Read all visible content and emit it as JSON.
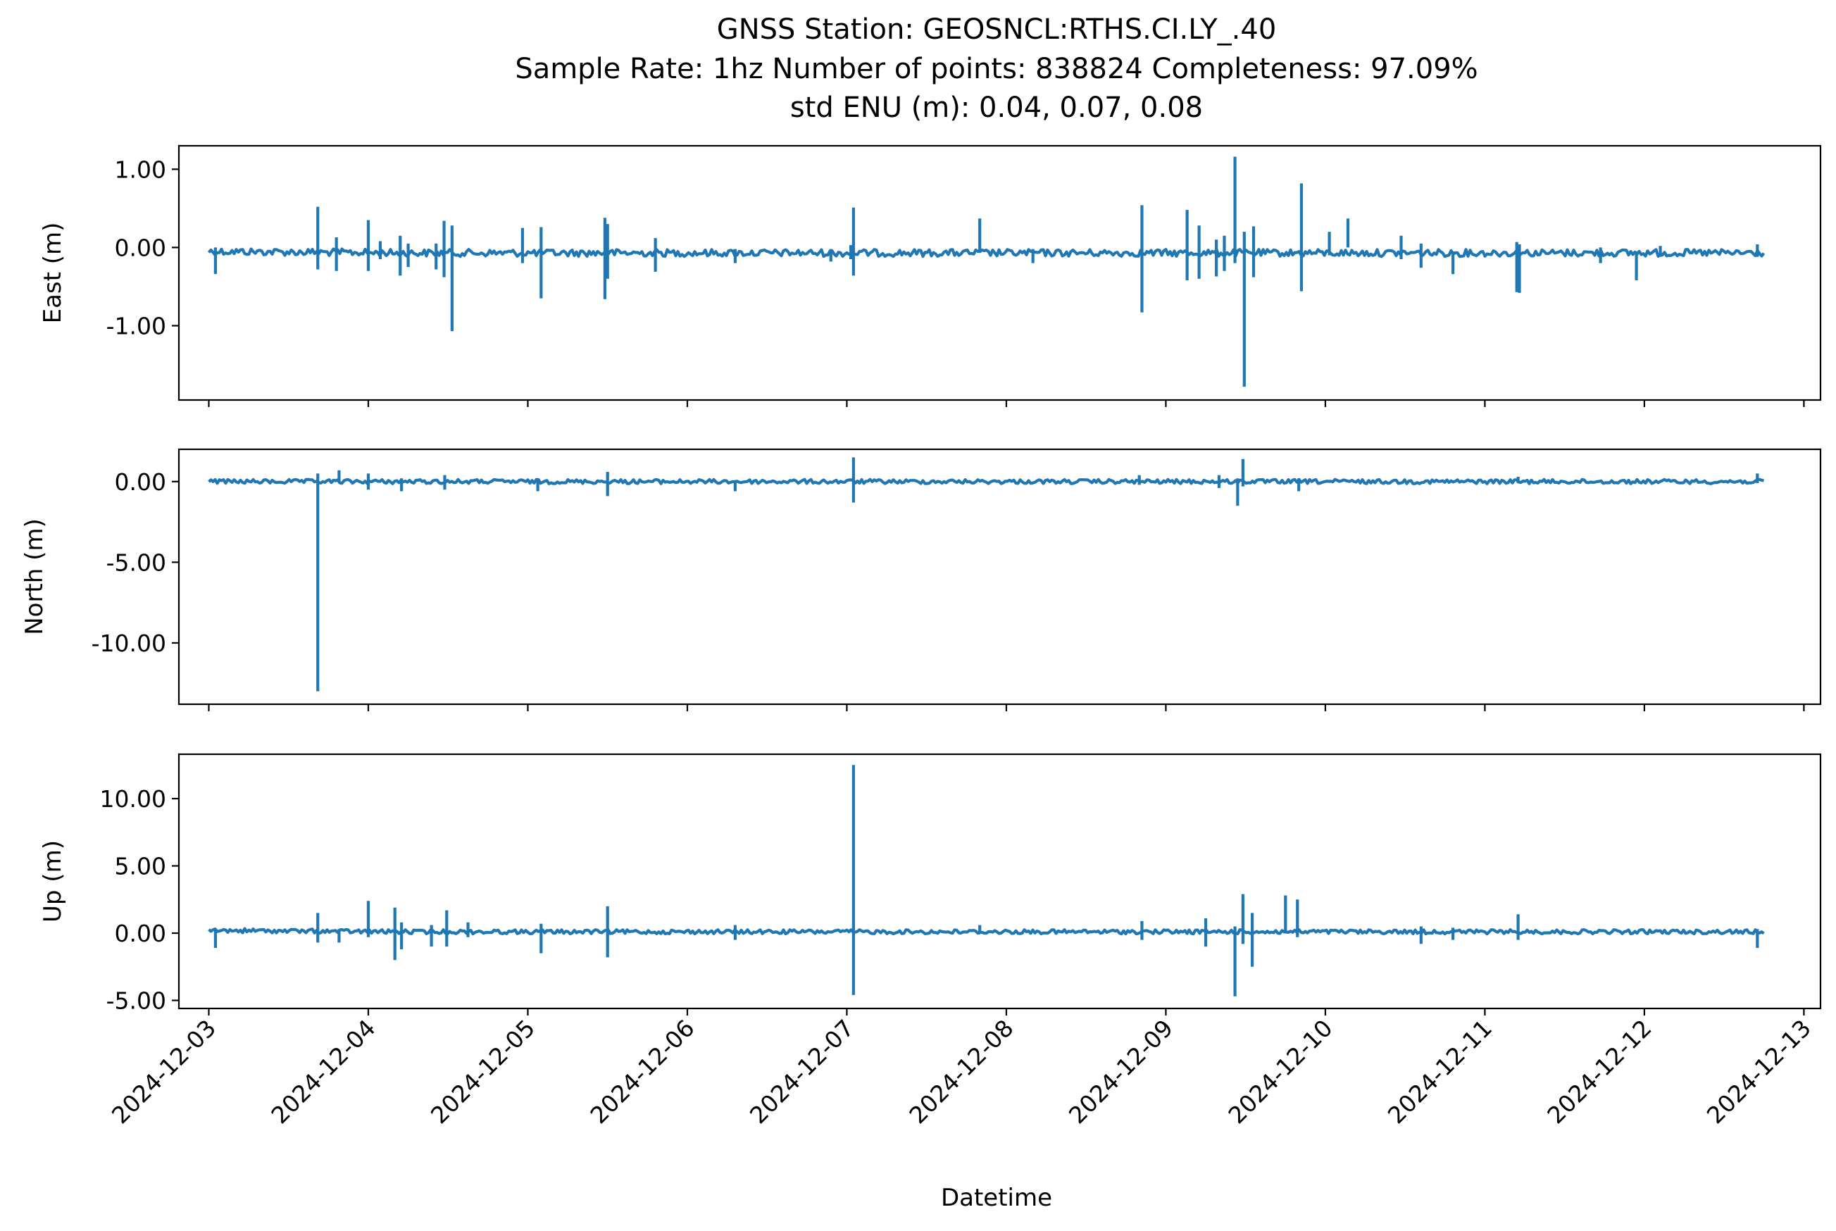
{
  "figure": {
    "title_lines": [
      "GNSS Station: GEOSNCL:RTHS.CI.LY_.40",
      "Sample Rate: 1hz   Number of points: 838824    Completeness:  97.09%",
      "std ENU (m):  0.04, 0.07, 0.08"
    ],
    "line_color": "#1f77b4"
  },
  "chart_data": {
    "type": "line",
    "title": "GNSS Station: GEOSNCL:RTHS.CI.LY_.40",
    "subtitle": [
      "Sample Rate: 1hz   Number of points: 838824    Completeness:  97.09%",
      "std ENU (m):  0.04, 0.07, 0.08"
    ],
    "xlabel": "Datetime",
    "xlim": [
      "2024-12-02T19:30",
      "2024-12-13T02:30"
    ],
    "x_ticks": [
      "2024-12-03",
      "2024-12-04",
      "2024-12-05",
      "2024-12-06",
      "2024-12-07",
      "2024-12-08",
      "2024-12-09",
      "2024-12-10",
      "2024-12-11",
      "2024-12-12",
      "2024-12-13"
    ],
    "data_range": [
      "2024-12-03T00:00",
      "2024-12-12T18:00"
    ],
    "grid": false,
    "legend": "none",
    "panels": [
      {
        "name": "East",
        "ylabel": "East (m)",
        "ylim": [
          -1.95,
          1.3
        ],
        "y_ticks": [
          1.0,
          0.0,
          -1.0
        ],
        "y_tick_labels": [
          "1.00",
          "0.00",
          "-1.00"
        ],
        "baseline": -0.07,
        "baseline_start": -0.05,
        "spikes": [
          [
            "2024-12-03T01:00",
            0.0,
            -0.34
          ],
          [
            "2024-12-03T16:24",
            0.52,
            -0.28
          ],
          [
            "2024-12-03T19:12",
            0.13,
            -0.3
          ],
          [
            "2024-12-04T00:00",
            0.35,
            -0.3
          ],
          [
            "2024-12-04T01:48",
            0.08,
            -0.15
          ],
          [
            "2024-12-04T04:48",
            0.15,
            -0.36
          ],
          [
            "2024-12-04T06:00",
            0.05,
            -0.25
          ],
          [
            "2024-12-04T10:12",
            0.05,
            -0.28
          ],
          [
            "2024-12-04T11:24",
            0.34,
            -0.38
          ],
          [
            "2024-12-04T12:36",
            0.28,
            -1.07
          ],
          [
            "2024-12-04T23:12",
            0.25,
            -0.2
          ],
          [
            "2024-12-05T02:00",
            0.26,
            -0.65
          ],
          [
            "2024-12-05T11:36",
            0.38,
            -0.66
          ],
          [
            "2024-12-05T12:00",
            0.3,
            -0.4
          ],
          [
            "2024-12-05T19:12",
            0.12,
            -0.31
          ],
          [
            "2024-12-06T07:12",
            -0.02,
            -0.2
          ],
          [
            "2024-12-06T21:36",
            -0.02,
            -0.18
          ],
          [
            "2024-12-07T00:36",
            0.03,
            -0.15
          ],
          [
            "2024-12-07T01:00",
            0.51,
            -0.36
          ],
          [
            "2024-12-07T20:00",
            0.37,
            -0.07
          ],
          [
            "2024-12-08T04:00",
            -0.02,
            -0.2
          ],
          [
            "2024-12-08T20:24",
            0.54,
            -0.83
          ],
          [
            "2024-12-09T03:12",
            0.48,
            -0.42
          ],
          [
            "2024-12-09T05:00",
            0.28,
            -0.4
          ],
          [
            "2024-12-09T07:36",
            0.1,
            -0.37
          ],
          [
            "2024-12-09T08:48",
            0.15,
            -0.3
          ],
          [
            "2024-12-09T10:24",
            1.16,
            -0.2
          ],
          [
            "2024-12-09T11:48",
            0.2,
            -1.78
          ],
          [
            "2024-12-09T13:12",
            0.27,
            -0.38
          ],
          [
            "2024-12-09T20:24",
            0.82,
            -0.56
          ],
          [
            "2024-12-10T00:36",
            0.2,
            -0.1
          ],
          [
            "2024-12-10T03:24",
            0.37,
            0.0
          ],
          [
            "2024-12-10T11:24",
            0.15,
            -0.15
          ],
          [
            "2024-12-10T14:24",
            0.05,
            -0.26
          ],
          [
            "2024-12-10T19:12",
            -0.05,
            -0.34
          ],
          [
            "2024-12-11T04:48",
            0.07,
            -0.57
          ],
          [
            "2024-12-11T05:12",
            0.04,
            -0.58
          ],
          [
            "2024-12-11T17:24",
            0.0,
            -0.2
          ],
          [
            "2024-12-11T22:48",
            -0.05,
            -0.42
          ],
          [
            "2024-12-12T02:24",
            0.02,
            -0.12
          ],
          [
            "2024-12-12T17:00",
            0.04,
            -0.12
          ]
        ]
      },
      {
        "name": "North",
        "ylabel": "North (m)",
        "ylim": [
          -13.8,
          2.0
        ],
        "y_ticks": [
          0.0,
          -5.0,
          -10.0
        ],
        "y_tick_labels": [
          "0.00",
          "-5.00",
          "-10.00"
        ],
        "baseline": 0.0,
        "baseline_start": 0.0,
        "spikes": [
          [
            "2024-12-03T16:24",
            0.5,
            -13.0
          ],
          [
            "2024-12-03T19:36",
            0.7,
            0.0
          ],
          [
            "2024-12-04T00:00",
            0.5,
            -0.5
          ],
          [
            "2024-12-04T05:00",
            0.2,
            -0.6
          ],
          [
            "2024-12-04T11:30",
            0.4,
            -0.5
          ],
          [
            "2024-12-05T01:30",
            0.2,
            -0.6
          ],
          [
            "2024-12-05T12:00",
            0.6,
            -0.9
          ],
          [
            "2024-12-06T07:12",
            0.0,
            -0.6
          ],
          [
            "2024-12-07T01:00",
            1.5,
            -1.3
          ],
          [
            "2024-12-08T20:00",
            0.4,
            -0.2
          ],
          [
            "2024-12-09T08:00",
            0.4,
            -0.4
          ],
          [
            "2024-12-09T10:48",
            0.2,
            -1.5
          ],
          [
            "2024-12-09T11:36",
            1.4,
            -0.3
          ],
          [
            "2024-12-09T20:00",
            0.2,
            -0.6
          ],
          [
            "2024-12-11T05:00",
            0.3,
            -0.1
          ],
          [
            "2024-12-12T17:00",
            0.5,
            -0.1
          ]
        ]
      },
      {
        "name": "Up",
        "ylabel": "Up (m)",
        "ylim": [
          -5.6,
          13.3
        ],
        "y_ticks": [
          10.0,
          5.0,
          0.0,
          -5.0
        ],
        "y_tick_labels": [
          "10.00",
          "5.00",
          "0.00",
          "-5.00"
        ],
        "baseline": 0.1,
        "baseline_start": 0.2,
        "spikes": [
          [
            "2024-12-03T01:00",
            0.2,
            -1.1
          ],
          [
            "2024-12-03T16:24",
            1.5,
            -0.7
          ],
          [
            "2024-12-03T19:36",
            0.3,
            -0.7
          ],
          [
            "2024-12-04T00:00",
            2.4,
            -0.3
          ],
          [
            "2024-12-04T04:00",
            1.9,
            -2.0
          ],
          [
            "2024-12-04T05:00",
            0.8,
            -1.2
          ],
          [
            "2024-12-04T09:30",
            0.6,
            -1.0
          ],
          [
            "2024-12-04T11:48",
            1.7,
            -1.0
          ],
          [
            "2024-12-04T15:00",
            0.8,
            -0.3
          ],
          [
            "2024-12-05T02:00",
            0.7,
            -1.5
          ],
          [
            "2024-12-05T12:00",
            2.0,
            -1.8
          ],
          [
            "2024-12-06T07:12",
            0.6,
            -0.5
          ],
          [
            "2024-12-07T01:00",
            12.5,
            -4.6
          ],
          [
            "2024-12-07T20:00",
            0.6,
            0.0
          ],
          [
            "2024-12-08T20:24",
            0.9,
            -0.5
          ],
          [
            "2024-12-09T06:00",
            1.1,
            -1.0
          ],
          [
            "2024-12-09T10:24",
            0.5,
            -4.7
          ],
          [
            "2024-12-09T11:36",
            2.9,
            -0.8
          ],
          [
            "2024-12-09T13:00",
            1.5,
            -2.5
          ],
          [
            "2024-12-09T18:00",
            2.8,
            0.0
          ],
          [
            "2024-12-09T19:48",
            2.5,
            -0.3
          ],
          [
            "2024-12-10T14:24",
            0.5,
            -0.8
          ],
          [
            "2024-12-10T19:12",
            0.4,
            -0.5
          ],
          [
            "2024-12-11T05:00",
            1.4,
            -0.5
          ],
          [
            "2024-12-12T17:00",
            0.3,
            -1.1
          ]
        ]
      }
    ]
  }
}
